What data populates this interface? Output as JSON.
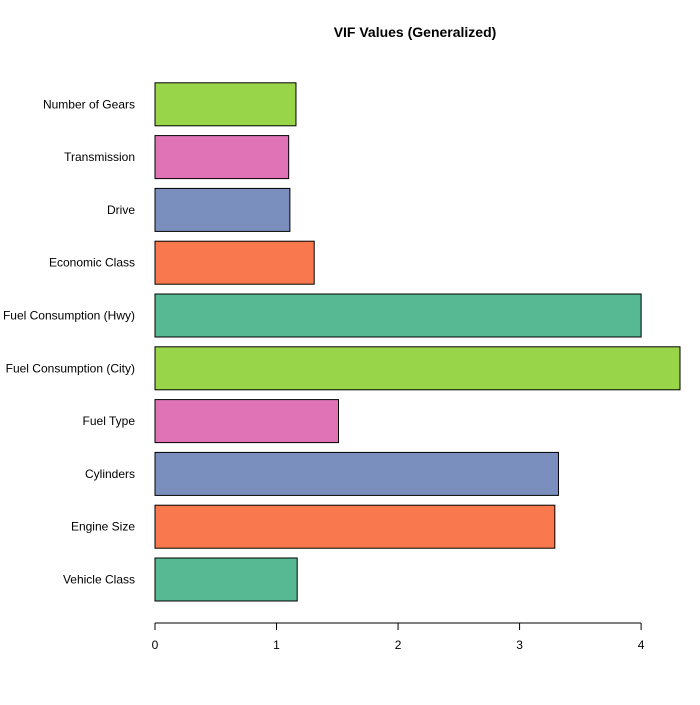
{
  "chart_data": {
    "type": "bar",
    "orientation": "horizontal",
    "title": "VIF Values (Generalized)",
    "xlabel": "",
    "ylabel": "",
    "categories": [
      "Vehicle Class",
      "Engine Size",
      "Cylinders",
      "Fuel Type",
      "Fuel Consumption (City)",
      "Fuel Consumption (Hwy)",
      "Economic Class",
      "Drive",
      "Transmission",
      "Number of Gears"
    ],
    "values": [
      1.17,
      3.29,
      3.32,
      1.51,
      4.32,
      4.0,
      1.31,
      1.11,
      1.1,
      1.16
    ],
    "colors": [
      "#57b993",
      "#f9784e",
      "#7b8fbf",
      "#df73b6",
      "#99d548",
      "#57b993",
      "#f9784e",
      "#7b8fbf",
      "#df73b6",
      "#99d548"
    ],
    "xlim": [
      0,
      4.32
    ],
    "xticks": [
      0,
      1,
      2,
      3,
      4
    ],
    "xtick_labels": [
      "0",
      "1",
      "2",
      "3",
      "4"
    ],
    "bar_border_color": "#000000",
    "grid": false,
    "legend": "none"
  }
}
